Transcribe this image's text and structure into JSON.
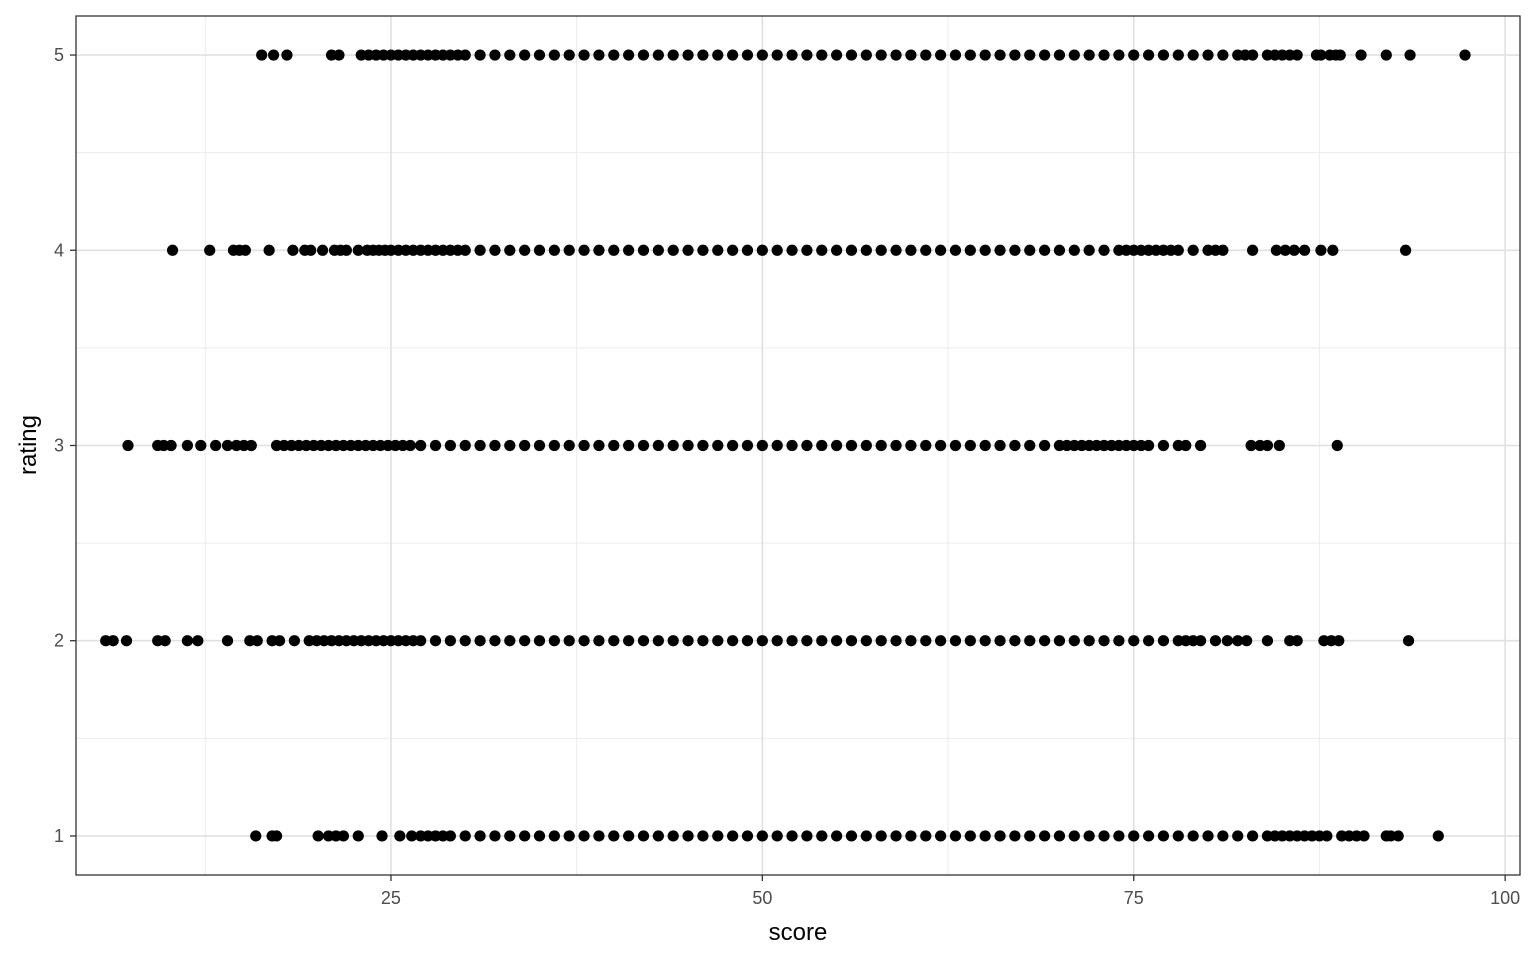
{
  "chart_data": {
    "type": "scatter",
    "title": "",
    "xlabel": "score",
    "ylabel": "rating",
    "xlim": [
      3.8,
      101.0
    ],
    "ylim": [
      0.8,
      5.2
    ],
    "x_ticks": [
      25,
      50,
      75,
      100
    ],
    "x_tick_labels": [
      "25",
      "50",
      "75",
      "100"
    ],
    "y_ticks": [
      1,
      2,
      3,
      4,
      5
    ],
    "y_tick_labels": [
      "1",
      "2",
      "3",
      "4",
      "5"
    ],
    "grid": true,
    "legend": "none",
    "point_color": "#000000",
    "series": [
      {
        "rating": 5,
        "x": [
          16.3,
          17.1,
          18.0,
          21.0,
          21.5,
          23.0,
          23.5,
          24.0,
          24.5,
          25.0,
          25.5,
          26.0,
          26.5,
          27.0,
          27.5,
          28.0,
          28.5,
          29.0,
          29.5,
          30.0,
          31.0,
          32.0,
          33.0,
          34.0,
          35.0,
          36.0,
          37.0,
          38.0,
          39.0,
          40.0,
          41.0,
          42.0,
          43.0,
          44.0,
          45.0,
          46.0,
          47.0,
          48.0,
          49.0,
          50.0,
          51.0,
          52.0,
          53.0,
          54.0,
          55.0,
          56.0,
          57.0,
          58.0,
          59.0,
          60.0,
          61.0,
          62.0,
          63.0,
          64.0,
          65.0,
          66.0,
          67.0,
          68.0,
          69.0,
          70.0,
          71.0,
          72.0,
          73.0,
          74.0,
          75.0,
          76.0,
          77.0,
          78.0,
          79.0,
          80.0,
          81.0,
          82.0,
          82.5,
          83.0,
          84.0,
          84.5,
          85.0,
          85.5,
          86.0,
          87.3,
          87.6,
          88.2,
          88.6,
          88.9,
          90.3,
          92.0,
          93.6,
          97.3
        ]
      },
      {
        "rating": 4,
        "x": [
          10.3,
          12.8,
          14.4,
          14.8,
          15.2,
          16.8,
          18.4,
          19.2,
          19.6,
          20.4,
          21.2,
          21.6,
          22.0,
          22.8,
          23.4,
          23.8,
          24.2,
          24.6,
          25.0,
          25.5,
          26.0,
          26.5,
          27.0,
          27.5,
          28.0,
          28.5,
          29.0,
          29.5,
          30.0,
          31.0,
          32.0,
          33.0,
          34.0,
          35.0,
          36.0,
          37.0,
          38.0,
          39.0,
          40.0,
          41.0,
          42.0,
          43.0,
          44.0,
          45.0,
          46.0,
          47.0,
          48.0,
          49.0,
          50.0,
          51.0,
          52.0,
          53.0,
          54.0,
          55.0,
          56.0,
          57.0,
          58.0,
          59.0,
          60.0,
          61.0,
          62.0,
          63.0,
          64.0,
          65.0,
          66.0,
          67.0,
          68.0,
          69.0,
          70.0,
          71.0,
          72.0,
          73.0,
          74.0,
          74.5,
          75.0,
          75.5,
          76.0,
          76.5,
          77.0,
          77.5,
          78.0,
          79.0,
          80.0,
          80.5,
          81.0,
          83.0,
          84.6,
          85.2,
          85.8,
          86.5,
          87.6,
          88.4,
          93.3
        ]
      },
      {
        "rating": 3,
        "x": [
          7.3,
          9.3,
          9.7,
          10.2,
          11.3,
          12.2,
          13.2,
          14.0,
          14.6,
          15.1,
          15.6,
          17.3,
          17.8,
          18.3,
          18.8,
          19.3,
          19.8,
          20.3,
          20.8,
          21.3,
          21.8,
          22.3,
          22.8,
          23.3,
          23.8,
          24.3,
          24.8,
          25.3,
          25.8,
          26.3,
          27.0,
          28.0,
          29.0,
          30.0,
          31.0,
          32.0,
          33.0,
          34.0,
          35.0,
          36.0,
          37.0,
          38.0,
          39.0,
          40.0,
          41.0,
          42.0,
          43.0,
          44.0,
          45.0,
          46.0,
          47.0,
          48.0,
          49.0,
          50.0,
          51.0,
          52.0,
          53.0,
          54.0,
          55.0,
          56.0,
          57.0,
          58.0,
          59.0,
          60.0,
          61.0,
          62.0,
          63.0,
          64.0,
          65.0,
          66.0,
          67.0,
          68.0,
          69.0,
          70.0,
          70.5,
          71.0,
          71.5,
          72.0,
          72.5,
          73.0,
          73.5,
          74.0,
          74.5,
          75.0,
          75.5,
          76.0,
          77.0,
          78.0,
          78.5,
          79.5,
          82.9,
          83.5,
          84.0,
          84.8,
          88.7
        ]
      },
      {
        "rating": 2,
        "x": [
          5.8,
          6.3,
          7.2,
          9.3,
          9.8,
          11.3,
          12.0,
          14.0,
          15.5,
          16.0,
          17.0,
          17.5,
          18.5,
          19.5,
          20.0,
          20.5,
          21.0,
          21.5,
          22.0,
          22.5,
          23.0,
          23.5,
          24.0,
          24.5,
          25.0,
          25.5,
          26.0,
          26.5,
          27.0,
          28.0,
          29.0,
          30.0,
          31.0,
          32.0,
          33.0,
          34.0,
          35.0,
          36.0,
          37.0,
          38.0,
          39.0,
          40.0,
          41.0,
          42.0,
          43.0,
          44.0,
          45.0,
          46.0,
          47.0,
          48.0,
          49.0,
          50.0,
          51.0,
          52.0,
          53.0,
          54.0,
          55.0,
          56.0,
          57.0,
          58.0,
          59.0,
          60.0,
          61.0,
          62.0,
          63.0,
          64.0,
          65.0,
          66.0,
          67.0,
          68.0,
          69.0,
          70.0,
          71.0,
          72.0,
          73.0,
          74.0,
          75.0,
          76.0,
          77.0,
          78.0,
          78.5,
          79.0,
          79.5,
          80.5,
          81.3,
          82.0,
          82.6,
          84.0,
          85.5,
          86.0,
          87.8,
          88.3,
          88.8,
          93.5
        ]
      },
      {
        "rating": 1,
        "x": [
          15.9,
          17.0,
          17.3,
          20.1,
          20.8,
          21.3,
          21.8,
          22.8,
          24.4,
          25.6,
          26.4,
          27.0,
          27.5,
          28.0,
          28.5,
          29.0,
          30.0,
          31.0,
          32.0,
          33.0,
          34.0,
          35.0,
          36.0,
          37.0,
          38.0,
          39.0,
          40.0,
          41.0,
          42.0,
          43.0,
          44.0,
          45.0,
          46.0,
          47.0,
          48.0,
          49.0,
          50.0,
          51.0,
          52.0,
          53.0,
          54.0,
          55.0,
          56.0,
          57.0,
          58.0,
          59.0,
          60.0,
          61.0,
          62.0,
          63.0,
          64.0,
          65.0,
          66.0,
          67.0,
          68.0,
          69.0,
          70.0,
          71.0,
          72.0,
          73.0,
          74.0,
          75.0,
          76.0,
          77.0,
          78.0,
          79.0,
          80.0,
          81.0,
          82.0,
          83.0,
          84.0,
          84.5,
          85.0,
          85.5,
          86.0,
          86.5,
          87.0,
          87.5,
          88.0,
          89.0,
          89.5,
          90.0,
          90.5,
          92.0,
          92.3,
          92.8,
          95.5
        ]
      }
    ]
  }
}
